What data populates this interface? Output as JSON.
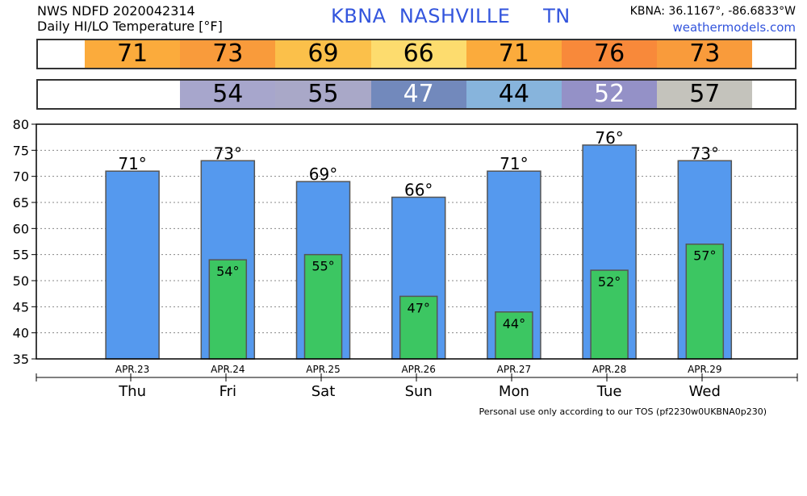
{
  "header": {
    "line1": "NWS NDFD 2020042314",
    "line2": "Daily HI/LO Temperature [°F]",
    "station_code": "KBNA",
    "station_city": "NASHVILLE",
    "station_state": "TN",
    "coords": "KBNA: 36.1167°, -86.6833°W",
    "site": "weathermodels.com"
  },
  "strips": {
    "hi": [
      {
        "value": "71",
        "color": "#fbab3c"
      },
      {
        "value": "73",
        "color": "#f99b3b"
      },
      {
        "value": "69",
        "color": "#fbc04a"
      },
      {
        "value": "66",
        "color": "#fddc6e"
      },
      {
        "value": "71",
        "color": "#fbab3c"
      },
      {
        "value": "76",
        "color": "#f8893a"
      },
      {
        "value": "73",
        "color": "#f99b3b"
      }
    ],
    "lo": [
      {
        "value": "",
        "color": "#ffffff",
        "text_color": "#000000"
      },
      {
        "value": "54",
        "color": "#a7a6cc",
        "text_color": "#000000"
      },
      {
        "value": "55",
        "color": "#a9a8c8",
        "text_color": "#000000"
      },
      {
        "value": "47",
        "color": "#7289bc",
        "text_color": "#ffffff"
      },
      {
        "value": "44",
        "color": "#87b4dc",
        "text_color": "#000000"
      },
      {
        "value": "52",
        "color": "#9491c7",
        "text_color": "#ffffff"
      },
      {
        "value": "57",
        "color": "#c4c3bc",
        "text_color": "#000000"
      }
    ]
  },
  "chart_data": {
    "type": "bar",
    "categories": [
      "APR.23",
      "APR.24",
      "APR.25",
      "APR.26",
      "APR.27",
      "APR.28",
      "APR.29"
    ],
    "days": [
      "Thu",
      "Fri",
      "Sat",
      "Sun",
      "Mon",
      "Tue",
      "Wed"
    ],
    "ylim": [
      35,
      80
    ],
    "yticks": [
      35,
      40,
      45,
      50,
      55,
      60,
      65,
      70,
      75,
      80
    ],
    "grid": true,
    "series": [
      {
        "values": [
          71,
          73,
          69,
          66,
          71,
          76,
          73
        ],
        "color": "#5599ee"
      },
      {
        "values": [
          null,
          54,
          55,
          47,
          44,
          52,
          57
        ],
        "color": "#3cc662"
      }
    ],
    "hi_labels": [
      "71°",
      "73°",
      "69°",
      "66°",
      "71°",
      "76°",
      "73°"
    ],
    "lo_labels": [
      "",
      "54°",
      "55°",
      "47°",
      "44°",
      "52°",
      "57°"
    ]
  },
  "footer": "Personal use only according to our TOS (pf2230w0UKBNA0p230)"
}
